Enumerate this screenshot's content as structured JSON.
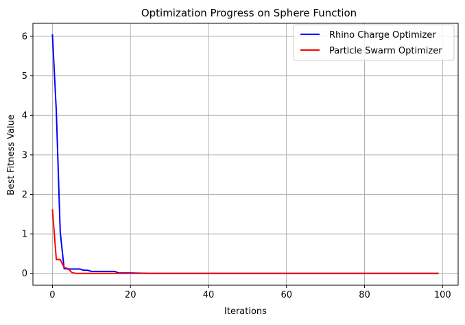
{
  "chart_data": {
    "type": "line",
    "title": "Optimization Progress on Sphere Function",
    "xlabel": "Iterations",
    "ylabel": "Best Fitness Value",
    "xlim": [
      -5,
      104
    ],
    "ylim": [
      -0.3,
      6.33
    ],
    "x_ticks": [
      0,
      20,
      40,
      60,
      80,
      100
    ],
    "y_ticks": [
      0,
      1,
      2,
      3,
      4,
      5,
      6
    ],
    "grid": true,
    "legend_position": "top-right",
    "series": [
      {
        "name": "Rhino Charge Optimizer",
        "color": "#0000ff",
        "points": [
          [
            0,
            6.05
          ],
          [
            1,
            4.1
          ],
          [
            2,
            1.05
          ],
          [
            3,
            0.12
          ],
          [
            4,
            0.11
          ],
          [
            5,
            0.11
          ],
          [
            6,
            0.11
          ],
          [
            7,
            0.11
          ],
          [
            8,
            0.08
          ],
          [
            9,
            0.08
          ],
          [
            10,
            0.05
          ],
          [
            11,
            0.05
          ],
          [
            12,
            0.05
          ],
          [
            13,
            0.05
          ],
          [
            14,
            0.05
          ],
          [
            15,
            0.05
          ],
          [
            16,
            0.05
          ],
          [
            17,
            0.01
          ],
          [
            18,
            0.01
          ],
          [
            20,
            0.01
          ],
          [
            25,
            0.0
          ],
          [
            30,
            0.0
          ],
          [
            40,
            0.0
          ],
          [
            50,
            0.0
          ],
          [
            60,
            0.0
          ],
          [
            70,
            0.0
          ],
          [
            80,
            0.0
          ],
          [
            90,
            0.0
          ],
          [
            99,
            0.0
          ]
        ]
      },
      {
        "name": "Particle Swarm Optimizer",
        "color": "#ff0000",
        "points": [
          [
            0,
            1.62
          ],
          [
            1,
            0.35
          ],
          [
            2,
            0.35
          ],
          [
            3,
            0.15
          ],
          [
            4,
            0.12
          ],
          [
            5,
            0.02
          ],
          [
            6,
            0.0
          ],
          [
            8,
            0.0
          ],
          [
            10,
            0.0
          ],
          [
            15,
            0.0
          ],
          [
            20,
            0.0
          ],
          [
            25,
            0.0
          ],
          [
            30,
            0.0
          ],
          [
            40,
            0.0
          ],
          [
            50,
            0.0
          ],
          [
            60,
            0.0
          ],
          [
            70,
            0.0
          ],
          [
            80,
            0.0
          ],
          [
            90,
            0.0
          ],
          [
            99,
            0.0
          ]
        ]
      }
    ]
  }
}
